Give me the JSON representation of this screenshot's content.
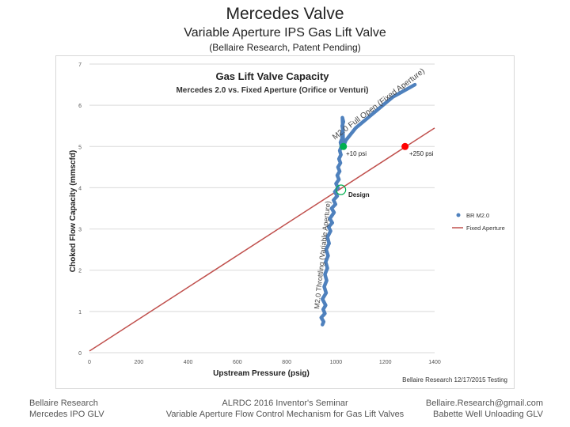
{
  "slide": {
    "title": "Mercedes Valve",
    "subtitle": "Variable Aperture IPS Gas Lift Valve",
    "subtitle2": "(Bellaire Research, Patent Pending)"
  },
  "footer": {
    "left_line1": "Bellaire Research",
    "left_line2": "Mercedes IPO GLV",
    "center_line1": "ALRDC 2016 Inventor's Seminar",
    "center_line2": "Variable Aperture Flow Control Mechanism for Gas Lift Valves",
    "right_line1": "Bellaire.Research@gmail.com",
    "right_line2": "Babette Well Unloading GLV"
  },
  "chart_data": {
    "type": "line",
    "title": "Gas Lift Valve Capacity",
    "subtitle": "Mercedes 2.0 vs. Fixed Aperture (Orifice or Venturi)",
    "xlabel": "Upstream Pressure (psig)",
    "ylabel": "Choked Flow Capacity (mmscfd)",
    "xlim": [
      0,
      1400
    ],
    "ylim": [
      0,
      7
    ],
    "xticks": [
      "0",
      "200",
      "400",
      "600",
      "800",
      "1000",
      "1200",
      "1400"
    ],
    "yticks": [
      "0",
      "1",
      "2",
      "3",
      "4",
      "5",
      "6",
      "7"
    ],
    "grid": true,
    "legend_position": "right",
    "series": [
      {
        "name": "BR M2.0",
        "color": "#4f81bd",
        "x": [
          945,
          950,
          940,
          955,
          948,
          958,
          945,
          960,
          952,
          962,
          955,
          965,
          958,
          968,
          960,
          972,
          965,
          978,
          970,
          985,
          975,
          992,
          982,
          998,
          990,
          1005,
          995,
          1008,
          1000,
          1012,
          1005,
          1015,
          1008,
          1018,
          1012,
          1020,
          1015,
          1022,
          1018,
          1025,
          1022,
          1028,
          1025,
          1030,
          1026,
          1030,
          1040,
          1060,
          1080,
          1110,
          1140,
          1170,
          1200,
          1230,
          1260,
          1290,
          1320
        ],
        "y": [
          0.68,
          0.75,
          0.85,
          0.95,
          1.05,
          1.15,
          1.3,
          1.45,
          1.6,
          1.75,
          1.9,
          2.05,
          2.2,
          2.35,
          2.5,
          2.65,
          2.8,
          2.95,
          3.05,
          3.15,
          3.25,
          3.4,
          3.5,
          3.6,
          3.7,
          3.8,
          3.9,
          4.0,
          4.1,
          4.2,
          4.3,
          4.4,
          4.5,
          4.6,
          4.7,
          4.8,
          4.9,
          5.0,
          5.1,
          5.2,
          5.3,
          5.4,
          5.5,
          5.6,
          5.7,
          5.0,
          5.15,
          5.3,
          5.45,
          5.6,
          5.75,
          5.9,
          6.05,
          6.2,
          6.3,
          6.4,
          6.5
        ]
      },
      {
        "name": "Fixed Aperture",
        "color": "#c0504d",
        "x": [
          0,
          1400
        ],
        "y": [
          0.04,
          5.45
        ]
      }
    ],
    "annotations": {
      "full_open_label": "M2.0 Full Open (Fixed Aperture)",
      "throttling_label": "M2.0 Throttling (Variable Aperture)",
      "plus10_label": "+10 psi",
      "plus250_label": "+250 psi",
      "design_label": "Design",
      "credit": "Bellaire Research 12/17/2015 Testing"
    },
    "markers": {
      "plus10": {
        "x": 1030,
        "y": 5.0,
        "color": "#00b050"
      },
      "plus250": {
        "x": 1280,
        "y": 5.0,
        "color": "#ff0000"
      },
      "design": {
        "x": 1020,
        "y": 3.95,
        "color": "#00b050"
      }
    }
  }
}
